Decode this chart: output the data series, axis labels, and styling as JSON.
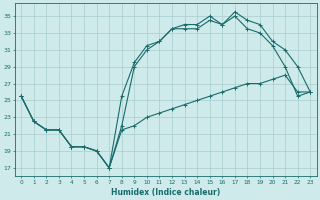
{
  "xlabel": "Humidex (Indice chaleur)",
  "bg_color": "#ceeaea",
  "grid_color": "#a8cccc",
  "line_color": "#1a6b6b",
  "xlim": [
    -0.5,
    23.5
  ],
  "ylim": [
    16,
    36.5
  ],
  "xticks": [
    0,
    1,
    2,
    3,
    4,
    5,
    6,
    7,
    8,
    9,
    10,
    11,
    12,
    13,
    14,
    15,
    16,
    17,
    18,
    19,
    20,
    21,
    22,
    23
  ],
  "yticks": [
    17,
    19,
    21,
    23,
    25,
    27,
    29,
    31,
    33,
    35
  ],
  "line1_x": [
    0,
    1,
    2,
    3,
    4,
    5,
    6,
    7,
    8,
    9,
    10,
    11,
    12,
    13,
    14,
    15,
    16,
    17,
    18,
    19,
    20,
    21,
    22,
    23
  ],
  "line1_y": [
    25.5,
    22.5,
    21.5,
    21.5,
    19.5,
    19.5,
    19.0,
    17.0,
    21.5,
    22.0,
    23.0,
    23.5,
    24.0,
    24.5,
    25.0,
    25.5,
    26.0,
    26.5,
    27.0,
    27.0,
    27.5,
    28.0,
    26.0,
    26.0
  ],
  "line2_x": [
    0,
    1,
    2,
    3,
    4,
    5,
    6,
    7,
    8,
    9,
    10,
    11,
    12,
    13,
    14,
    15,
    16,
    17,
    18,
    19,
    20,
    21,
    22,
    23
  ],
  "line2_y": [
    25.5,
    22.5,
    21.5,
    21.5,
    19.5,
    19.5,
    19.0,
    17.0,
    22.0,
    29.0,
    31.0,
    32.0,
    33.5,
    33.5,
    33.5,
    34.5,
    34.0,
    35.0,
    33.5,
    33.0,
    31.5,
    29.0,
    25.5,
    26.0
  ],
  "line3_x": [
    0,
    1,
    2,
    3,
    4,
    5,
    6,
    7,
    8,
    9,
    10,
    11,
    12,
    13,
    14,
    15,
    16,
    17,
    18,
    19,
    20,
    21,
    22,
    23
  ],
  "line3_y": [
    25.5,
    22.5,
    21.5,
    21.5,
    19.5,
    19.5,
    19.0,
    17.0,
    25.5,
    29.5,
    31.5,
    32.0,
    33.5,
    34.0,
    34.0,
    35.0,
    34.0,
    35.5,
    34.5,
    34.0,
    32.0,
    31.0,
    29.0,
    26.0
  ],
  "marker_size": 2.5,
  "linewidth": 0.8
}
